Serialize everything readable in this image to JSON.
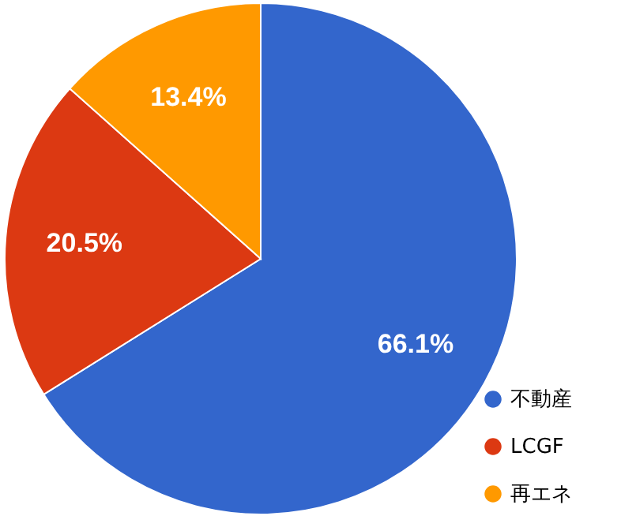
{
  "chart_data": {
    "type": "pie",
    "categories": [
      "不動産",
      "LCGF",
      "再エネ"
    ],
    "values": [
      66.1,
      20.5,
      13.4
    ],
    "colors": [
      "#3366cc",
      "#dc3912",
      "#ff9900"
    ],
    "value_labels": [
      "66.1%",
      "20.5%",
      "13.4%"
    ],
    "legend": "bottom right"
  }
}
